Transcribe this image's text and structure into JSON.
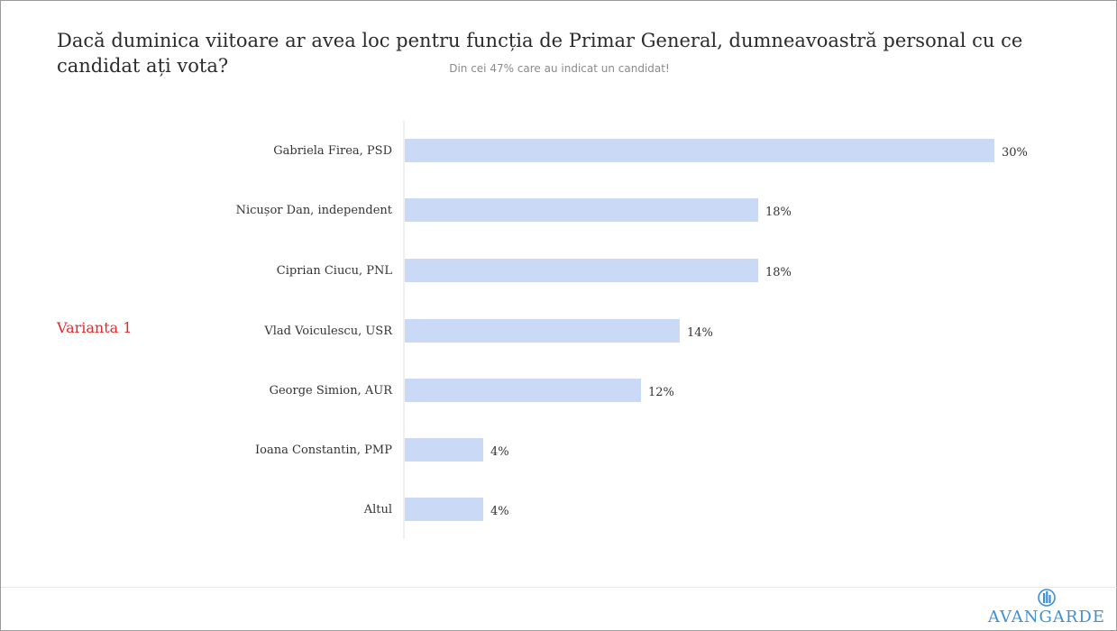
{
  "title": "Dacă duminica viitoare ar avea loc pentru funcția de Primar General, dumneavoastră personal cu ce candidat ați vota?",
  "subtitle": "Din cei 47% care au indicat un candidat!",
  "side_label": "Varianta 1",
  "logo": {
    "text": "AVANGARDE",
    "icon": "avangarde-logo-icon"
  },
  "colors": {
    "bar": "#cad9f5",
    "side_label": "#e02b2b",
    "logo": "#3f8fd4"
  },
  "chart_data": {
    "type": "bar",
    "orientation": "horizontal",
    "title": "Dacă duminica viitoare ar avea loc pentru funcția de Primar General, dumneavoastră personal cu ce candidat ați vota?",
    "subtitle": "Din cei 47% care au indicat un candidat!",
    "categories": [
      "Gabriela Firea, PSD",
      "Nicușor Dan, independent",
      "Ciprian Ciucu, PNL",
      "Vlad Voiculescu, USR",
      "George Simion, AUR",
      "Ioana Constantin, PMP",
      "Altul"
    ],
    "values": [
      30,
      18,
      18,
      14,
      12,
      4,
      4
    ],
    "value_labels": [
      "30%",
      "18%",
      "18%",
      "14%",
      "12%",
      "4%",
      "4%"
    ],
    "xlim": [
      0,
      30
    ],
    "grid": false,
    "legend": "none"
  }
}
